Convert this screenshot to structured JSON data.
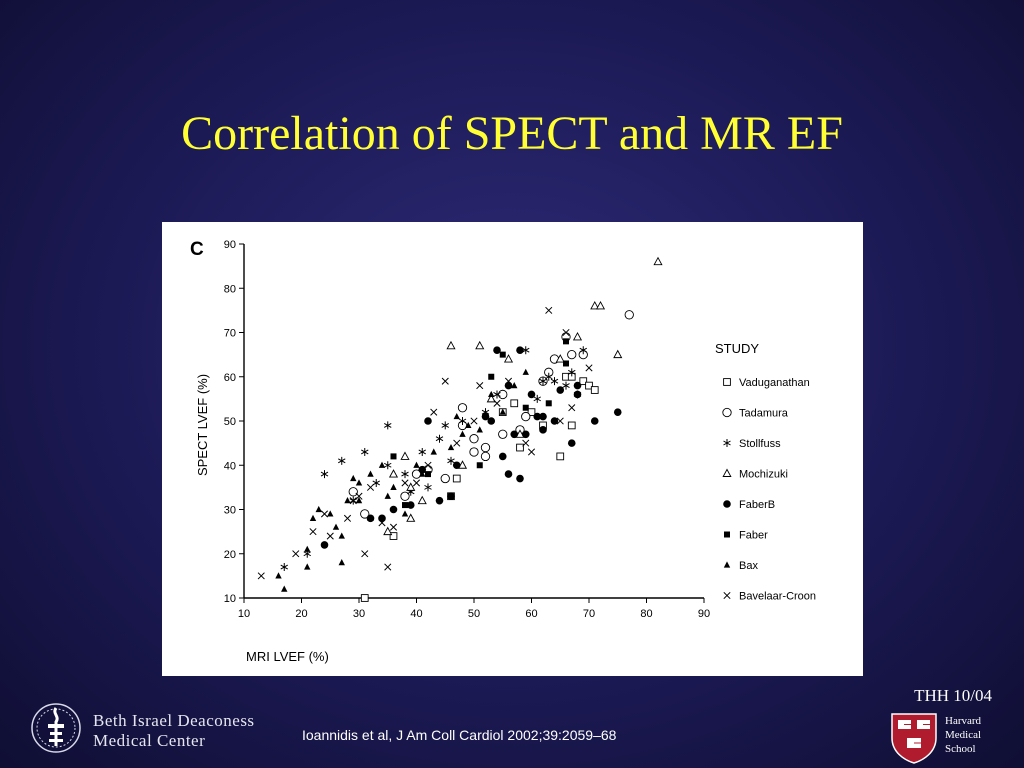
{
  "slide": {
    "title": "Correlation of SPECT and MR EF",
    "tag": "THH 10/04",
    "citation": "Ioannidis et al, J Am Coll Cardiol 2002;39:2059–68"
  },
  "logos": {
    "bidmc_line1": "Beth Israel Deaconess",
    "bidmc_line2": "Medical Center",
    "hms_line1": "Harvard",
    "hms_line2": "Medical",
    "hms_line3": "School"
  },
  "chart_data": {
    "type": "scatter",
    "panel_label": "C",
    "xlabel": "MRI LVEF (%)",
    "ylabel": "SPECT LVEF (%)",
    "xlim": [
      10,
      90
    ],
    "ylim": [
      10,
      90
    ],
    "xticks": [
      10,
      20,
      30,
      40,
      50,
      60,
      70,
      80,
      90
    ],
    "yticks": [
      10,
      20,
      30,
      40,
      50,
      60,
      70,
      80,
      90
    ],
    "grid": false,
    "legend_title": "STUDY",
    "legend_position": "right",
    "series": [
      {
        "name": "Vaduganathan",
        "marker": "open-square",
        "points": [
          [
            31,
            10
          ],
          [
            36,
            24
          ],
          [
            46,
            33
          ],
          [
            47,
            37
          ],
          [
            55,
            52
          ],
          [
            57,
            54
          ],
          [
            58,
            44
          ],
          [
            60,
            52
          ],
          [
            62,
            49
          ],
          [
            65,
            42
          ],
          [
            67,
            49
          ],
          [
            66,
            60
          ],
          [
            67,
            60
          ],
          [
            69,
            59
          ],
          [
            70,
            58
          ],
          [
            71,
            57
          ]
        ]
      },
      {
        "name": "Tadamura",
        "marker": "open-circle",
        "points": [
          [
            29,
            34
          ],
          [
            31,
            29
          ],
          [
            38,
            33
          ],
          [
            40,
            38
          ],
          [
            42,
            39
          ],
          [
            45,
            37
          ],
          [
            48,
            49
          ],
          [
            48,
            53
          ],
          [
            50,
            43
          ],
          [
            50,
            46
          ],
          [
            52,
            42
          ],
          [
            52,
            44
          ],
          [
            55,
            47
          ],
          [
            55,
            56
          ],
          [
            58,
            48
          ],
          [
            59,
            51
          ],
          [
            62,
            59
          ],
          [
            63,
            61
          ],
          [
            64,
            64
          ],
          [
            66,
            69
          ],
          [
            67,
            65
          ],
          [
            69,
            65
          ],
          [
            77,
            74
          ]
        ]
      },
      {
        "name": "Stollfuss",
        "marker": "asterisk",
        "points": [
          [
            17,
            17
          ],
          [
            21,
            20
          ],
          [
            24,
            38
          ],
          [
            27,
            41
          ],
          [
            29,
            32
          ],
          [
            31,
            43
          ],
          [
            33,
            36
          ],
          [
            35,
            49
          ],
          [
            35,
            40
          ],
          [
            38,
            38
          ],
          [
            39,
            34
          ],
          [
            41,
            43
          ],
          [
            42,
            35
          ],
          [
            44,
            46
          ],
          [
            45,
            49
          ],
          [
            46,
            41
          ],
          [
            48,
            50
          ],
          [
            52,
            52
          ],
          [
            54,
            56
          ],
          [
            59,
            66
          ],
          [
            61,
            55
          ],
          [
            62,
            59
          ],
          [
            63,
            60
          ],
          [
            64,
            59
          ],
          [
            66,
            58
          ],
          [
            67,
            61
          ],
          [
            68,
            56
          ],
          [
            69,
            66
          ]
        ]
      },
      {
        "name": "Mochizuki",
        "marker": "open-triangle",
        "points": [
          [
            35,
            25
          ],
          [
            36,
            38
          ],
          [
            38,
            42
          ],
          [
            39,
            28
          ],
          [
            39,
            35
          ],
          [
            41,
            32
          ],
          [
            46,
            67
          ],
          [
            48,
            40
          ],
          [
            51,
            67
          ],
          [
            53,
            55
          ],
          [
            56,
            64
          ],
          [
            58,
            47
          ],
          [
            65,
            64
          ],
          [
            68,
            69
          ],
          [
            71,
            76
          ],
          [
            72,
            76
          ],
          [
            75,
            65
          ],
          [
            82,
            86
          ]
        ]
      },
      {
        "name": "FaberB",
        "marker": "filled-circle",
        "points": [
          [
            24,
            22
          ],
          [
            32,
            28
          ],
          [
            34,
            28
          ],
          [
            36,
            30
          ],
          [
            39,
            31
          ],
          [
            41,
            39
          ],
          [
            42,
            50
          ],
          [
            44,
            32
          ],
          [
            46,
            33
          ],
          [
            47,
            40
          ],
          [
            52,
            51
          ],
          [
            53,
            50
          ],
          [
            54,
            66
          ],
          [
            55,
            42
          ],
          [
            56,
            58
          ],
          [
            56,
            38
          ],
          [
            57,
            47
          ],
          [
            58,
            37
          ],
          [
            58,
            66
          ],
          [
            59,
            47
          ],
          [
            60,
            56
          ],
          [
            61,
            51
          ],
          [
            62,
            51
          ],
          [
            62,
            48
          ],
          [
            64,
            50
          ],
          [
            65,
            57
          ],
          [
            67,
            45
          ],
          [
            68,
            58
          ],
          [
            68,
            56
          ],
          [
            71,
            50
          ],
          [
            75,
            52
          ]
        ]
      },
      {
        "name": "Faber",
        "marker": "filled-square",
        "points": [
          [
            36,
            42
          ],
          [
            38,
            31
          ],
          [
            42,
            38
          ],
          [
            46,
            33
          ],
          [
            51,
            40
          ],
          [
            53,
            60
          ],
          [
            55,
            65
          ],
          [
            59,
            53
          ],
          [
            63,
            54
          ],
          [
            66,
            63
          ],
          [
            66,
            68
          ]
        ]
      },
      {
        "name": "Bax",
        "marker": "filled-triangle",
        "points": [
          [
            16,
            15
          ],
          [
            17,
            12
          ],
          [
            21,
            17
          ],
          [
            21,
            21
          ],
          [
            22,
            28
          ],
          [
            23,
            30
          ],
          [
            25,
            29
          ],
          [
            26,
            26
          ],
          [
            27,
            24
          ],
          [
            27,
            18
          ],
          [
            28,
            32
          ],
          [
            29,
            37
          ],
          [
            30,
            36
          ],
          [
            30,
            32
          ],
          [
            32,
            38
          ],
          [
            32,
            28
          ],
          [
            34,
            40
          ],
          [
            35,
            33
          ],
          [
            36,
            35
          ],
          [
            38,
            29
          ],
          [
            40,
            40
          ],
          [
            41,
            38
          ],
          [
            43,
            43
          ],
          [
            46,
            44
          ],
          [
            47,
            51
          ],
          [
            48,
            47
          ],
          [
            49,
            49
          ],
          [
            51,
            48
          ],
          [
            53,
            56
          ],
          [
            55,
            52
          ],
          [
            57,
            58
          ],
          [
            59,
            61
          ]
        ]
      },
      {
        "name": "Bavelaar-Croon",
        "marker": "x",
        "points": [
          [
            13,
            15
          ],
          [
            19,
            20
          ],
          [
            22,
            25
          ],
          [
            24,
            29
          ],
          [
            25,
            24
          ],
          [
            28,
            28
          ],
          [
            29,
            32
          ],
          [
            30,
            33
          ],
          [
            31,
            20
          ],
          [
            32,
            35
          ],
          [
            34,
            27
          ],
          [
            35,
            17
          ],
          [
            36,
            26
          ],
          [
            38,
            36
          ],
          [
            40,
            36
          ],
          [
            42,
            40
          ],
          [
            43,
            52
          ],
          [
            45,
            59
          ],
          [
            47,
            45
          ],
          [
            50,
            50
          ],
          [
            51,
            58
          ],
          [
            54,
            54
          ],
          [
            56,
            59
          ],
          [
            59,
            45
          ],
          [
            60,
            43
          ],
          [
            63,
            75
          ],
          [
            65,
            50
          ],
          [
            66,
            70
          ],
          [
            67,
            53
          ],
          [
            70,
            62
          ]
        ]
      }
    ]
  }
}
